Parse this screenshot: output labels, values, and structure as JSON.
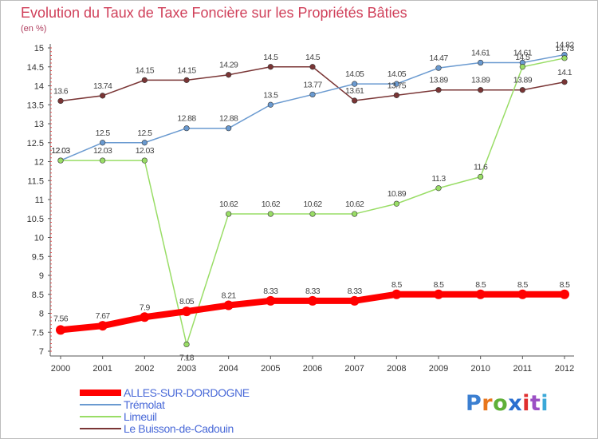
{
  "title": "Evolution du Taux de Taxe Foncière sur les Propriétés Bâties",
  "unit": "(en %)",
  "logo": {
    "letters": [
      "P",
      "r",
      "o",
      "x",
      "i",
      "t",
      "i"
    ],
    "colors": [
      "#3b7fd1",
      "#e8761c",
      "#5fb038",
      "#2a6fd0",
      "#e02f2f",
      "#9b4fc4",
      "#3ba8d8"
    ]
  },
  "chart_data": {
    "type": "line",
    "x": [
      2000,
      2001,
      2002,
      2003,
      2004,
      2005,
      2006,
      2007,
      2008,
      2009,
      2010,
      2011,
      2012
    ],
    "ylim": [
      7,
      15
    ],
    "yticks": [
      "7",
      "7.5",
      "8",
      "8.5",
      "9",
      "9.5",
      "10",
      "10.5",
      "11",
      "11.5",
      "12",
      "12.5",
      "13",
      "13.5",
      "14",
      "14.5",
      "15"
    ],
    "series": [
      {
        "name": "ALLES-SUR-DORDOGNE",
        "color": "#ff0000",
        "values": [
          7.56,
          7.67,
          7.9,
          8.05,
          8.21,
          8.33,
          8.33,
          8.33,
          8.5,
          8.5,
          8.5,
          8.5,
          8.5
        ],
        "labels": [
          "7.56",
          "7.67",
          "7.9",
          "8.05",
          "8.21",
          "8.33",
          "8.33",
          "8.33",
          "8.5",
          "8.5",
          "8.5",
          "8.5",
          "8.5"
        ]
      },
      {
        "name": "Trémolat",
        "color": "#6a9ad0",
        "values": [
          12.03,
          12.5,
          12.5,
          12.88,
          12.88,
          13.5,
          13.77,
          14.05,
          14.05,
          14.47,
          14.61,
          14.61,
          14.82
        ],
        "labels": [
          "12.03",
          "12.5",
          "12.5",
          "12.88",
          "12.88",
          "13.5",
          "13.77",
          "14.05",
          "14.05",
          "14.47",
          "14.61",
          "14.61",
          "14.82"
        ]
      },
      {
        "name": "Limeuil",
        "color": "#99dd66",
        "values": [
          12.03,
          12.03,
          12.03,
          7.18,
          10.62,
          10.62,
          10.62,
          10.62,
          10.89,
          11.3,
          11.6,
          14.5,
          14.73
        ],
        "labels": [
          "12.03",
          "12.03",
          "12.03",
          "7.18",
          "10.62",
          "10.62",
          "10.62",
          "10.62",
          "10.89",
          "11.3",
          "11.6",
          "14.5",
          "14.73"
        ]
      },
      {
        "name": "Le Buisson-de-Cadouin",
        "color": "#7a3535",
        "values": [
          13.6,
          13.74,
          14.15,
          14.15,
          14.29,
          14.5,
          14.5,
          13.61,
          13.75,
          13.89,
          13.89,
          13.89,
          14.1
        ],
        "labels": [
          "13.6",
          "13.74",
          "14.15",
          "14.15",
          "14.29",
          "14.5",
          "14.5",
          "13.61",
          "13.75",
          "13.89",
          "13.89",
          "13.89",
          "14.1"
        ]
      }
    ],
    "grid": false,
    "legend": "bottom-left"
  }
}
